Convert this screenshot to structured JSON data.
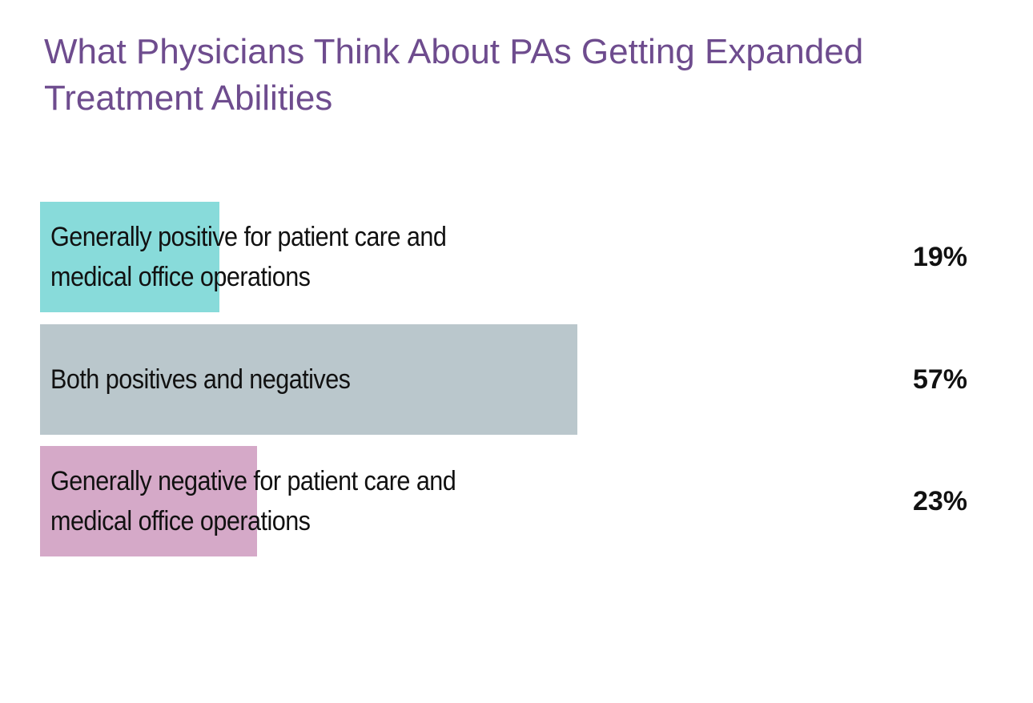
{
  "chart_data": {
    "type": "bar",
    "orientation": "horizontal",
    "title": "What Physicians Think About PAs Getting Expanded Treatment Abilities",
    "categories": [
      "Generally positive for patient care and medical office operations",
      "Both positives and negatives",
      "Generally negative for patient care and medical office operations"
    ],
    "values": [
      19,
      57,
      23
    ],
    "value_labels": [
      "19%",
      "57%",
      "23%"
    ],
    "colors": [
      "#88dbda",
      "#bac7cc",
      "#d5a9c8"
    ],
    "xlim": [
      0,
      100
    ]
  }
}
